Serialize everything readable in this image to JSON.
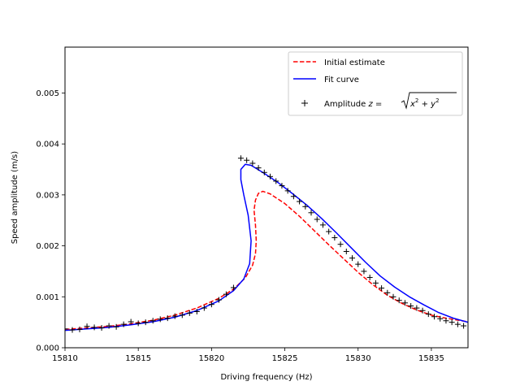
{
  "chart_data": {
    "type": "line",
    "xlabel": "Driving frequency (Hz)",
    "ylabel": "Speed amplitude (m/s)",
    "xlim": [
      15810.0,
      15837.5
    ],
    "ylim": [
      0.0,
      0.0059
    ],
    "x_ticks": [
      "15810",
      "15815",
      "15820",
      "15825",
      "15830",
      "15835"
    ],
    "x_tick_values": [
      15810,
      15815,
      15820,
      15825,
      15830,
      15835
    ],
    "y_ticks": [
      "0.000",
      "0.001",
      "0.002",
      "0.003",
      "0.004",
      "0.005"
    ],
    "y_tick_values": [
      0.0,
      0.001,
      0.002,
      0.003,
      0.004,
      0.005
    ],
    "grid": false,
    "legend_position": "upper right",
    "series": [
      {
        "name": "Initial estimate",
        "style": "dashed",
        "color": "#ff0000",
        "x": [
          15810.0,
          15811.5,
          15813.0,
          15814.5,
          15816.0,
          15817.5,
          15819.0,
          15820.5,
          15821.5,
          15822.3,
          15822.8,
          15823.0,
          15823.05,
          15823.0,
          15822.9,
          15823.0,
          15823.2,
          15823.5,
          15824.0,
          15825.0,
          15826.0,
          15827.0,
          15828.0,
          15829.0,
          15830.0,
          15831.0,
          15832.0,
          15833.0,
          15834.0,
          15835.0,
          15836.0,
          15837.5
        ],
        "y": [
          0.00036,
          0.00039,
          0.00042,
          0.00047,
          0.00054,
          0.00064,
          0.00078,
          0.00097,
          0.00115,
          0.00137,
          0.00162,
          0.00185,
          0.0021,
          0.0024,
          0.0027,
          0.0029,
          0.00303,
          0.00307,
          0.00302,
          0.00283,
          0.00258,
          0.0023,
          0.00202,
          0.00175,
          0.00148,
          0.00124,
          0.00103,
          0.00087,
          0.00074,
          0.00064,
          0.00058,
          0.00051
        ]
      },
      {
        "name": "Fit curve",
        "style": "solid",
        "color": "#0000ff",
        "x": [
          15810.0,
          15811.5,
          15813.0,
          15814.5,
          15816.0,
          15817.5,
          15819.0,
          15820.5,
          15821.5,
          15822.2,
          15822.6,
          15822.7,
          15822.5,
          15822.2,
          15822.0,
          15822.0,
          15822.3,
          15822.7,
          15823.5,
          15824.5,
          15825.5,
          15826.5,
          15827.5,
          15828.5,
          15829.5,
          15830.5,
          15831.5,
          15832.5,
          15833.5,
          15834.5,
          15835.5,
          15836.5,
          15837.5
        ],
        "y": [
          0.00034,
          0.00037,
          0.0004,
          0.00045,
          0.00051,
          0.0006,
          0.00073,
          0.00092,
          0.00112,
          0.00135,
          0.00165,
          0.0021,
          0.0026,
          0.003,
          0.0033,
          0.0035,
          0.0036,
          0.00358,
          0.00344,
          0.00325,
          0.00303,
          0.0028,
          0.00254,
          0.00226,
          0.00197,
          0.00168,
          0.00141,
          0.00119,
          0.001,
          0.00084,
          0.00069,
          0.00058,
          0.0005
        ]
      },
      {
        "name": "Amplitude $z=\\sqrt{x^2+y^2}$",
        "name_prefix": "Amplitude ",
        "style": "markers",
        "marker": "+",
        "color": "#000000",
        "x": [
          15810.0,
          15810.5,
          15811.0,
          15811.5,
          15812.0,
          15812.5,
          15813.0,
          15813.5,
          15814.0,
          15814.5,
          15815.0,
          15815.5,
          15816.0,
          15816.5,
          15817.0,
          15817.5,
          15818.0,
          15818.5,
          15819.0,
          15819.5,
          15820.0,
          15820.5,
          15821.0,
          15821.5,
          15822.0,
          15822.4,
          15822.8,
          15823.2,
          15823.6,
          15824.0,
          15824.4,
          15824.8,
          15825.2,
          15825.6,
          15826.0,
          15826.4,
          15826.8,
          15827.2,
          15827.6,
          15828.0,
          15828.4,
          15828.8,
          15829.2,
          15829.6,
          15830.0,
          15830.4,
          15830.8,
          15831.2,
          15831.6,
          15832.0,
          15832.4,
          15832.8,
          15833.2,
          15833.6,
          15834.0,
          15834.4,
          15834.8,
          15835.2,
          15835.6,
          15836.0,
          15836.4,
          15836.8,
          15837.2
        ],
        "y": [
          0.00037,
          0.00035,
          0.00036,
          0.00042,
          0.0004,
          0.00039,
          0.00043,
          0.00041,
          0.00046,
          0.00051,
          0.00048,
          0.0005,
          0.00053,
          0.00056,
          0.00058,
          0.00062,
          0.00064,
          0.00068,
          0.00071,
          0.00078,
          0.00085,
          0.00094,
          0.00105,
          0.00118,
          0.00372,
          0.00368,
          0.00362,
          0.00353,
          0.00344,
          0.00336,
          0.00327,
          0.00318,
          0.00308,
          0.00297,
          0.00287,
          0.00277,
          0.00265,
          0.00252,
          0.00241,
          0.00228,
          0.00216,
          0.00203,
          0.00189,
          0.00176,
          0.00164,
          0.0015,
          0.00138,
          0.00127,
          0.00117,
          0.00108,
          0.001,
          0.00093,
          0.00088,
          0.00082,
          0.00078,
          0.00073,
          0.00066,
          0.00061,
          0.00057,
          0.00053,
          0.0005,
          0.00046,
          0.00043
        ]
      }
    ]
  }
}
